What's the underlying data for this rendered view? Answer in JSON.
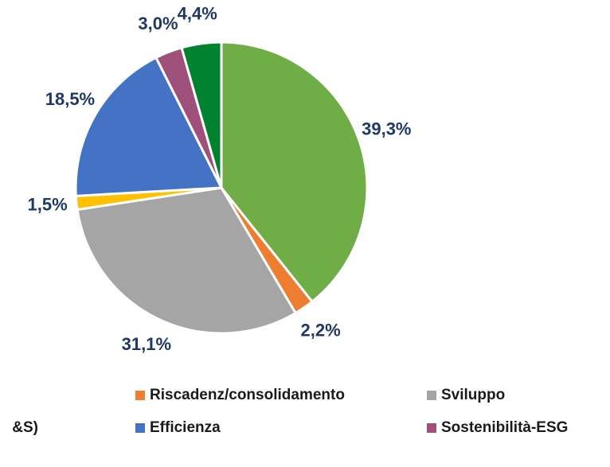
{
  "chart_data": {
    "type": "pie",
    "categories": [
      null,
      "Riscadenz/consolidamento",
      "Sviluppo",
      "&S)",
      "Efficienza",
      "Sostenibilità-ESG",
      null
    ],
    "values": [
      39.3,
      2.2,
      31.1,
      1.5,
      18.5,
      3.0,
      4.4
    ],
    "value_labels": [
      "39,3%",
      "2,2%",
      "31,1%",
      "1,5%",
      "18,5%",
      "3,0%",
      "4,4%"
    ],
    "colors": [
      "#70ad47",
      "#ed7d31",
      "#a5a5a5",
      "#ffc000",
      "#4472c4",
      "#9e4f7a",
      "#00822e"
    ],
    "legend": "bottom"
  }
}
